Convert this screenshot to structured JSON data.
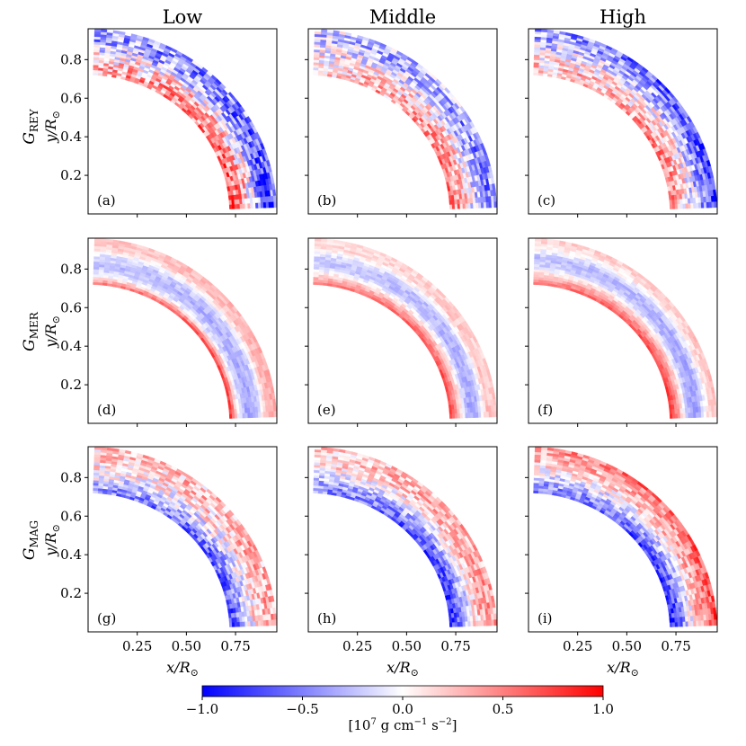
{
  "chart_data": {
    "type": "heatmap",
    "columns": [
      "Low",
      "Middle",
      "High"
    ],
    "rows": [
      {
        "label_main": "G",
        "label_sub": "REY"
      },
      {
        "label_main": "G",
        "label_sub": "MER"
      },
      {
        "label_main": "G",
        "label_sub": "MAG"
      }
    ],
    "ylabel_main": "y/R",
    "ylabel_sub": "⊙",
    "xlabel_main": "x/R",
    "xlabel_sub": "⊙",
    "xlim": [
      0,
      0.96
    ],
    "ylim": [
      0,
      0.96
    ],
    "xticks": [
      0.25,
      0.5,
      0.75
    ],
    "xtick_labels": [
      "0.25",
      "0.50",
      "0.75"
    ],
    "yticks": [
      0.2,
      0.4,
      0.6,
      0.8
    ],
    "ytick_labels": [
      "0.2",
      "0.4",
      "0.6",
      "0.8"
    ],
    "shell_r": [
      0.72,
      0.96
    ],
    "colorbar": {
      "range": [
        -1.0,
        1.0
      ],
      "ticks": [
        -1.0,
        -0.5,
        0.0,
        0.5,
        1.0
      ],
      "tick_labels": [
        "−1.0",
        "−0.5",
        "0.0",
        "0.5",
        "1.0"
      ],
      "label_prefix": "[10",
      "label_exp": "7",
      "label_mid": " g cm",
      "label_exp2": "−1",
      "label_mid2": " s",
      "label_exp3": "−2",
      "label_suffix": "]"
    },
    "panels": [
      {
        "id": "a",
        "label": "(a)",
        "row": 0,
        "col": 0,
        "profile": [
          0.7,
          0.55,
          0.15,
          -0.45,
          -0.75,
          -0.55
        ],
        "lat_decay": 0.55,
        "noise": 0.45
      },
      {
        "id": "b",
        "label": "(b)",
        "row": 0,
        "col": 1,
        "profile": [
          0.55,
          0.4,
          0.1,
          -0.3,
          -0.55,
          -0.35
        ],
        "lat_decay": 0.6,
        "noise": 0.4
      },
      {
        "id": "c",
        "label": "(c)",
        "row": 0,
        "col": 2,
        "profile": [
          0.5,
          0.35,
          0.05,
          -0.3,
          -0.6,
          -0.8
        ],
        "lat_decay": 0.5,
        "noise": 0.4
      },
      {
        "id": "d",
        "label": "(d)",
        "row": 1,
        "col": 0,
        "profile": [
          0.95,
          -0.1,
          -0.4,
          -0.25,
          0.3,
          0.35
        ],
        "lat_decay": 0.4,
        "noise": 0.1
      },
      {
        "id": "e",
        "label": "(e)",
        "row": 1,
        "col": 1,
        "profile": [
          0.85,
          0.25,
          -0.35,
          -0.3,
          0.25,
          0.2
        ],
        "lat_decay": 0.4,
        "noise": 0.1
      },
      {
        "id": "f",
        "label": "(f)",
        "row": 1,
        "col": 2,
        "profile": [
          0.9,
          0.35,
          -0.3,
          -0.4,
          0.1,
          0.3
        ],
        "lat_decay": 0.4,
        "noise": 0.1
      },
      {
        "id": "g",
        "label": "(g)",
        "row": 2,
        "col": 0,
        "profile": [
          -0.85,
          -0.5,
          -0.1,
          0.2,
          0.35,
          0.3
        ],
        "lat_decay": 0.5,
        "noise": 0.35
      },
      {
        "id": "h",
        "label": "(h)",
        "row": 2,
        "col": 1,
        "profile": [
          -0.9,
          -0.65,
          -0.15,
          0.25,
          0.4,
          0.35
        ],
        "lat_decay": 0.5,
        "noise": 0.3
      },
      {
        "id": "i",
        "label": "(i)",
        "row": 2,
        "col": 2,
        "profile": [
          -0.9,
          -0.6,
          -0.1,
          0.3,
          0.5,
          0.8
        ],
        "lat_decay": 0.45,
        "noise": 0.3
      }
    ]
  }
}
